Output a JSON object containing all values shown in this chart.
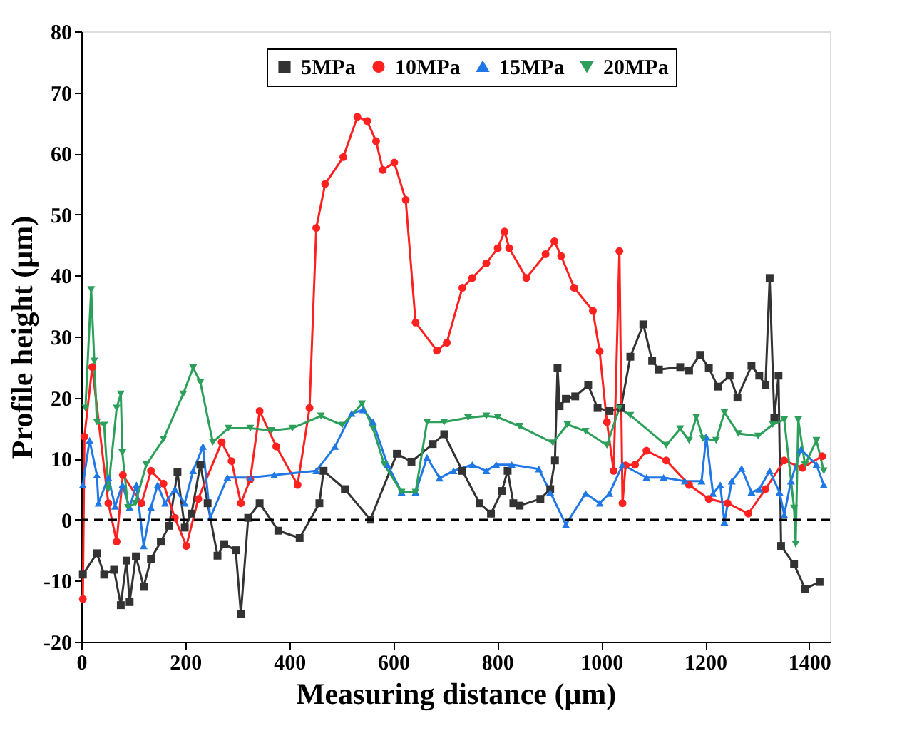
{
  "chart_data": {
    "type": "line",
    "xlabel": "Measuring distance (μm)",
    "ylabel": "Profile height (μm)",
    "xlim": [
      0,
      1440
    ],
    "ylim": [
      -20,
      80
    ],
    "xticks": [
      0,
      200,
      400,
      600,
      800,
      1000,
      1200,
      1400
    ],
    "yticks": [
      -20,
      -10,
      0,
      10,
      20,
      30,
      40,
      50,
      60,
      70,
      80
    ],
    "grid": false,
    "legend": "top",
    "line_style": "solid",
    "ref_lines": [
      {
        "axis": "y",
        "value": 0,
        "label": null,
        "color": "#000000",
        "line_style": "dashed"
      }
    ],
    "series": [
      {
        "name": "5MPa",
        "color": "#333333",
        "marker": "square",
        "x": [
          3,
          30,
          44,
          63,
          76,
          87,
          93,
          105,
          120,
          134,
          153,
          169,
          185,
          199,
          212,
          229,
          243,
          262,
          275,
          297,
          307,
          321,
          343,
          379,
          420,
          458,
          466,
          507,
          556,
          607,
          635,
          676,
          698,
          733,
          766,
          788,
          809,
          820,
          831,
          843,
          883,
          902,
          911,
          916,
          920,
          932,
          950,
          975,
          993,
          1016,
          1038,
          1056,
          1081,
          1098,
          1111,
          1152,
          1169,
          1190,
          1207,
          1224,
          1247,
          1262,
          1289,
          1304,
          1316,
          1324,
          1333,
          1341,
          1346,
          1371,
          1392,
          1420
        ],
        "values": [
          -9,
          -5.5,
          -9,
          -8.2,
          -14,
          -6.7,
          -13.5,
          -6,
          -11,
          -6.4,
          -3.6,
          -1,
          7.8,
          -1.3,
          1,
          9,
          2.7,
          -5.9,
          -4,
          -5,
          -15.4,
          0.3,
          2.7,
          -1.8,
          -3,
          2.7,
          8,
          5,
          0,
          10.8,
          9.5,
          12.4,
          14,
          8,
          2.7,
          1,
          4.7,
          8,
          2.7,
          2.3,
          3.4,
          5,
          9.7,
          24.9,
          18.6,
          19.8,
          20.2,
          22,
          18.3,
          17.8,
          18.3,
          26.7,
          32,
          26,
          24.6,
          25,
          24.4,
          27,
          24.9,
          21.8,
          23.6,
          20,
          25.2,
          23.6,
          22,
          39.6,
          16.7,
          23.6,
          -4.3,
          -7.3,
          -11.3,
          -10.2
        ]
      },
      {
        "name": "10MPa",
        "color": "#ff2020",
        "marker": "circle",
        "x": [
          3,
          6,
          21,
          52,
          68,
          80,
          116,
          134,
          158,
          180,
          202,
          225,
          270,
          289,
          307,
          325,
          343,
          375,
          416,
          439,
          452,
          469,
          504,
          531,
          550,
          567,
          580,
          602,
          624,
          643,
          684,
          703,
          733,
          752,
          779,
          801,
          814,
          823,
          856,
          893,
          910,
          923,
          948,
          984,
          997,
          1011,
          1024,
          1035,
          1041,
          1047,
          1065,
          1087,
          1125,
          1169,
          1207,
          1243,
          1283,
          1316,
          1352,
          1387,
          1425
        ],
        "values": [
          -13,
          13.6,
          25,
          2.7,
          -3.6,
          7.3,
          2.7,
          8,
          5.9,
          0.3,
          -4.3,
          3.4,
          12.7,
          9.6,
          2.7,
          6.6,
          17.8,
          12,
          5.7,
          18.3,
          47.8,
          55,
          59.4,
          66,
          65.3,
          62,
          57.3,
          58.5,
          52.4,
          32.3,
          27.7,
          29,
          38,
          39.6,
          42,
          44.5,
          47.2,
          44.5,
          39.6,
          43.5,
          45.6,
          43.2,
          38,
          34.2,
          27.6,
          16,
          8,
          44,
          2.7,
          8.9,
          9,
          11.3,
          9.7,
          5.7,
          3.4,
          2.7,
          1,
          5,
          9.7,
          8.5,
          10.4
        ]
      },
      {
        "name": "15MPa",
        "color": "#1f78e6",
        "marker": "triangle",
        "x": [
          3,
          16,
          30,
          33,
          52,
          65,
          79,
          93,
          106,
          120,
          134,
          147,
          161,
          180,
          199,
          215,
          234,
          248,
          281,
          325,
          371,
          452,
          488,
          520,
          542,
          561,
          589,
          616,
          643,
          665,
          689,
          716,
          752,
          779,
          798,
          828,
          880,
          902,
          932,
          970,
          997,
          1016,
          1041,
          1087,
          1120,
          1161,
          1193,
          1202,
          1215,
          1229,
          1237,
          1251,
          1270,
          1289,
          1304,
          1324,
          1343,
          1352,
          1365,
          1384,
          1414,
          1428
        ],
        "values": [
          5.7,
          13,
          7.3,
          2.7,
          6.9,
          2.2,
          5.7,
          2,
          5.7,
          -4.3,
          2,
          5.7,
          2.7,
          5,
          2.7,
          8,
          12,
          0.3,
          6.9,
          6.9,
          7.3,
          8,
          12,
          17.4,
          18,
          16,
          9,
          4.5,
          4.5,
          10.2,
          6.8,
          8,
          9,
          8,
          9,
          9,
          8.3,
          4.5,
          -0.8,
          4.3,
          2.7,
          4.3,
          9,
          6.9,
          6.9,
          6.3,
          6.3,
          13.6,
          4.3,
          5.7,
          -0.4,
          6.3,
          8.4,
          4.5,
          5,
          8,
          4.5,
          0.8,
          6.3,
          11.5,
          9,
          5.7
        ]
      },
      {
        "name": "20MPa",
        "color": "#2ca05a",
        "marker": "triangle-down",
        "x": [
          8,
          19,
          25,
          30,
          44,
          52,
          68,
          76,
          79,
          90,
          104,
          125,
          158,
          196,
          215,
          229,
          253,
          283,
          325,
          366,
          406,
          461,
          502,
          540,
          561,
          583,
          616,
          643,
          665,
          698,
          744,
          779,
          801,
          843,
          907,
          935,
          970,
          1011,
          1035,
          1056,
          1125,
          1152,
          1169,
          1183,
          1196,
          1221,
          1237,
          1264,
          1302,
          1330,
          1352,
          1371,
          1374,
          1379,
          1392,
          1414,
          1428
        ],
        "values": [
          18.3,
          37.7,
          26,
          16,
          15.5,
          5,
          18.3,
          20.6,
          11,
          2,
          2.7,
          9,
          13.2,
          20.6,
          24.9,
          22.5,
          12.7,
          15,
          15,
          14.6,
          15,
          17,
          15.5,
          19,
          15,
          9,
          4.5,
          4.5,
          16,
          16,
          16.7,
          17,
          16.8,
          15.3,
          12.6,
          15.6,
          14.5,
          12.2,
          18.3,
          17.1,
          12.2,
          14.9,
          13,
          16.8,
          13.3,
          13,
          17.6,
          14.1,
          13.7,
          15.6,
          16.4,
          1.9,
          -4,
          16.4,
          9,
          13,
          8
        ]
      }
    ]
  }
}
